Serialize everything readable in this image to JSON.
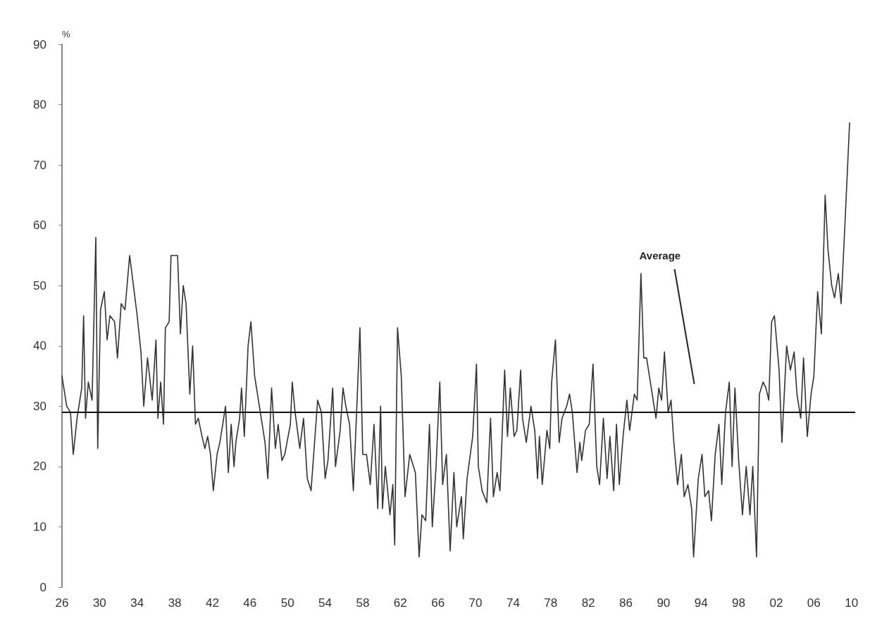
{
  "chart_data": {
    "type": "line",
    "ylabel": "%",
    "color": "#333333",
    "marker": "none",
    "x": [
      1926.0,
      1926.5,
      1926.9,
      1927.2,
      1927.6,
      1928.1,
      1928.3,
      1928.5,
      1928.8,
      1929.2,
      1929.6,
      1929.8,
      1930.1,
      1930.5,
      1930.8,
      1931.1,
      1931.6,
      1931.9,
      1932.3,
      1932.7,
      1933.2,
      1933.6,
      1934.0,
      1934.4,
      1934.7,
      1935.1,
      1935.6,
      1936.0,
      1936.2,
      1936.5,
      1936.8,
      1937.0,
      1937.4,
      1937.6,
      1938.3,
      1938.6,
      1938.9,
      1939.2,
      1939.6,
      1939.9,
      1940.2,
      1940.5,
      1940.9,
      1941.2,
      1941.5,
      1941.8,
      1942.1,
      1942.5,
      1942.8,
      1943.4,
      1943.7,
      1944.0,
      1944.3,
      1944.5,
      1944.9,
      1945.1,
      1945.4,
      1945.8,
      1946.1,
      1946.5,
      1947.1,
      1947.6,
      1947.9,
      1948.3,
      1948.7,
      1949.0,
      1949.4,
      1949.7,
      1950.3,
      1950.5,
      1950.8,
      1951.3,
      1951.7,
      1952.1,
      1952.5,
      1953.2,
      1953.6,
      1954.0,
      1954.3,
      1954.8,
      1955.1,
      1955.6,
      1955.9,
      1956.2,
      1956.6,
      1957.0,
      1957.4,
      1957.7,
      1958.0,
      1958.4,
      1958.8,
      1959.2,
      1959.6,
      1959.9,
      1960.1,
      1960.4,
      1960.9,
      1961.2,
      1961.4,
      1961.7,
      1962.1,
      1962.5,
      1963.0,
      1963.6,
      1964.0,
      1964.3,
      1964.7,
      1965.1,
      1965.4,
      1965.8,
      1966.2,
      1966.5,
      1966.9,
      1967.3,
      1967.7,
      1968.0,
      1968.5,
      1968.7,
      1969.1,
      1969.7,
      1970.1,
      1970.3,
      1970.7,
      1971.2,
      1971.6,
      1971.9,
      1972.3,
      1972.6,
      1973.1,
      1973.4,
      1973.7,
      1974.1,
      1974.4,
      1974.8,
      1975.0,
      1975.4,
      1975.9,
      1976.3,
      1976.6,
      1976.8,
      1977.1,
      1977.6,
      1977.9,
      1978.1,
      1978.5,
      1978.9,
      1979.2,
      1979.7,
      1980.0,
      1980.3,
      1980.8,
      1981.1,
      1981.3,
      1981.7,
      1982.1,
      1982.5,
      1982.9,
      1983.2,
      1983.6,
      1984.0,
      1984.3,
      1984.7,
      1985.0,
      1985.3,
      1985.7,
      1986.1,
      1986.4,
      1986.9,
      1987.2,
      1987.6,
      1987.9,
      1988.2,
      1988.7,
      1989.2,
      1989.5,
      1989.8,
      1990.1,
      1990.5,
      1990.8,
      1991.1,
      1991.5,
      1991.9,
      1992.2,
      1992.6,
      1993.0,
      1993.2,
      1993.7,
      1994.1,
      1994.4,
      1994.8,
      1995.1,
      1995.5,
      1995.9,
      1996.2,
      1996.6,
      1997.0,
      1997.3,
      1997.6,
      1998.0,
      1998.4,
      1998.8,
      1999.2,
      1999.5,
      1999.9,
      2000.2,
      2000.6,
      2000.9,
      2001.2,
      2001.5,
      2001.8,
      2002.3,
      2002.6,
      2003.1,
      2003.5,
      2003.9,
      2004.2,
      2004.6,
      2004.9,
      2005.3,
      2005.7,
      2006.0,
      2006.4,
      2006.8,
      2007.2,
      2007.5,
      2007.9,
      2008.2,
      2008.6,
      2008.9,
      2009.3,
      2009.8
    ],
    "values": [
      35,
      30,
      29,
      22,
      28,
      33,
      45,
      28,
      34,
      31,
      58,
      23,
      46,
      49,
      41,
      45,
      44,
      38,
      47,
      46,
      55,
      50,
      45,
      39,
      30,
      38,
      31,
      41,
      28,
      34,
      27,
      43,
      44,
      55,
      55,
      42,
      50,
      47,
      32,
      40,
      27,
      28,
      25,
      23,
      25,
      22,
      16,
      22,
      24,
      30,
      19,
      27,
      20,
      24,
      28,
      33,
      25,
      40,
      44,
      35,
      29,
      24,
      18,
      33,
      23,
      27,
      21,
      22,
      27,
      34,
      29,
      23,
      28,
      18,
      16,
      31,
      29,
      18,
      21,
      33,
      20,
      26,
      33,
      30,
      27,
      16,
      31,
      43,
      22,
      22,
      17,
      27,
      13,
      30,
      13,
      20,
      12,
      17,
      7,
      43,
      35,
      15,
      22,
      19,
      5,
      12,
      11,
      27,
      10,
      20,
      34,
      17,
      22,
      6,
      19,
      10,
      15,
      8,
      18,
      25,
      37,
      20,
      16,
      14,
      28,
      15,
      19,
      16,
      36,
      25,
      33,
      25,
      26,
      36,
      28,
      24,
      30,
      26,
      18,
      25,
      17,
      26,
      23,
      34,
      41,
      24,
      28,
      30,
      32,
      29,
      19,
      24,
      21,
      26,
      27,
      37,
      20,
      17,
      28,
      18,
      25,
      16,
      27,
      17,
      25,
      31,
      26,
      32,
      31,
      52,
      38,
      38,
      33,
      28,
      33,
      31,
      39,
      29,
      31,
      24,
      17,
      22,
      15,
      17,
      13,
      5,
      18,
      22,
      15,
      16,
      11,
      22,
      27,
      17,
      29,
      34,
      20,
      33,
      21,
      12,
      20,
      12,
      20,
      5,
      32,
      34,
      33,
      31,
      44,
      45,
      36,
      24,
      40,
      36,
      39,
      32,
      28,
      38,
      25,
      32,
      35,
      49,
      42,
      65,
      56,
      50,
      48,
      52,
      47,
      60,
      77
    ],
    "xlim": [
      1926,
      2010.4
    ],
    "xticks": [
      {
        "value": 1926,
        "label": "26"
      },
      {
        "value": 1930,
        "label": "30"
      },
      {
        "value": 1934,
        "label": "34"
      },
      {
        "value": 1938,
        "label": "38"
      },
      {
        "value": 1942,
        "label": "42"
      },
      {
        "value": 1946,
        "label": "46"
      },
      {
        "value": 1950,
        "label": "50"
      },
      {
        "value": 1954,
        "label": "54"
      },
      {
        "value": 1958,
        "label": "58"
      },
      {
        "value": 1962,
        "label": "62"
      },
      {
        "value": 1966,
        "label": "66"
      },
      {
        "value": 1970,
        "label": "70"
      },
      {
        "value": 1974,
        "label": "74"
      },
      {
        "value": 1978,
        "label": "78"
      },
      {
        "value": 1982,
        "label": "82"
      },
      {
        "value": 1986,
        "label": "86"
      },
      {
        "value": 1990,
        "label": "90"
      },
      {
        "value": 1994,
        "label": "94"
      },
      {
        "value": 1998,
        "label": "98"
      },
      {
        "value": 2002,
        "label": "02"
      },
      {
        "value": 2006,
        "label": "06"
      },
      {
        "value": 2010,
        "label": "10"
      }
    ],
    "ylim": [
      0,
      90
    ],
    "yticks": [
      0,
      10,
      20,
      30,
      40,
      50,
      60,
      70,
      80,
      90
    ],
    "ref_lines": [
      {
        "axis": "y",
        "value": 29,
        "label": "Average",
        "color": "#111111"
      }
    ]
  }
}
